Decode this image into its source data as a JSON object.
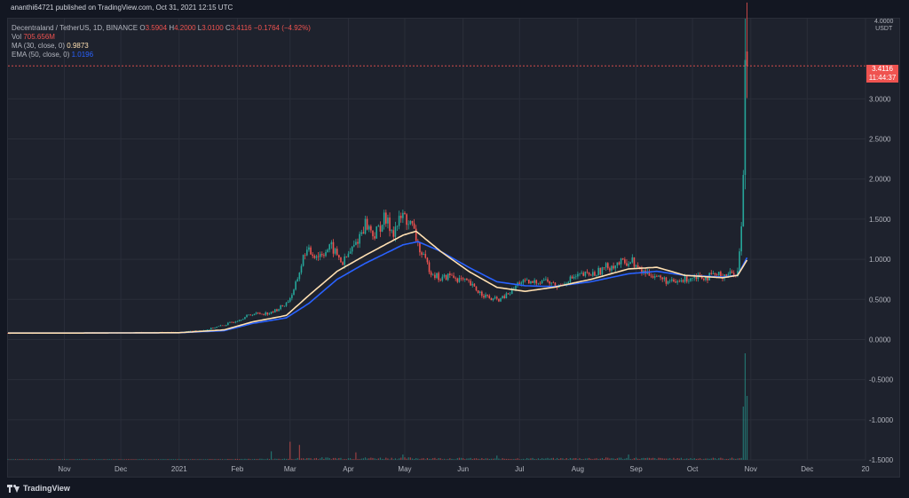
{
  "header": {
    "publish_text": "ananthi64721 published on TradingView.com, Oct 31, 2021 12:15 UTC"
  },
  "legend": {
    "symbol": "Decentraland / TetherUS, 1D, BINANCE",
    "ohlc": {
      "o_label": "O",
      "o_value": "3.5904",
      "h_label": "H",
      "h_value": "4.2000",
      "l_label": "L",
      "l_value": "3.0100",
      "c_label": "C",
      "c_value": "3.4116",
      "change": "−0.1764 (−4.92%)"
    },
    "vol_label": "Vol",
    "vol_value": "705.656M",
    "ma_label": "MA (30, close, 0)",
    "ma_value": "0.9873",
    "ema_label": "EMA (50, close, 0)",
    "ema_value": "1.0196"
  },
  "price_tag": {
    "value": "3.4116",
    "countdown": "11:44:37"
  },
  "axis_unit": {
    "line1": "4.0000",
    "line2": "USDT"
  },
  "footer": {
    "brand": "TradingView"
  },
  "colors": {
    "background": "#1e222d",
    "up": "#26a69a",
    "down": "#ef5350",
    "ma": "#ffe0b2",
    "ema": "#2962ff",
    "grid": "#2a2e39"
  },
  "chart_data": {
    "type": "candlestick",
    "symbol": "MANA/USDT",
    "interval": "1D",
    "ylim": [
      -1.5,
      4.0
    ],
    "y_ticks": [
      "3.0000",
      "2.5000",
      "2.0000",
      "1.5000",
      "1.0000",
      "0.5000",
      "0.0000",
      "-0.5000",
      "-1.0000",
      "-1.5000"
    ],
    "y_tick_values": [
      3.0,
      2.5,
      2.0,
      1.5,
      1.0,
      0.5,
      0.0,
      -0.5,
      -1.0,
      -1.5
    ],
    "x_ticks": [
      "Nov",
      "Dec",
      "2021",
      "Feb",
      "Mar",
      "Apr",
      "May",
      "Jun",
      "Jul",
      "Aug",
      "Sep",
      "Oct",
      "Nov",
      "Dec",
      "20"
    ],
    "x_tick_days": [
      0,
      30,
      61,
      92,
      120,
      151,
      181,
      212,
      242,
      273,
      304,
      334,
      365,
      395,
      426
    ],
    "last_price": 3.4116,
    "price_series_anchors": [
      [
        -30,
        0.08
      ],
      [
        0,
        0.08
      ],
      [
        30,
        0.085
      ],
      [
        61,
        0.09
      ],
      [
        75,
        0.12
      ],
      [
        85,
        0.18
      ],
      [
        92,
        0.24
      ],
      [
        100,
        0.32
      ],
      [
        110,
        0.33
      ],
      [
        118,
        0.45
      ],
      [
        122,
        0.6
      ],
      [
        128,
        1.1
      ],
      [
        135,
        1.05
      ],
      [
        142,
        1.15
      ],
      [
        148,
        0.95
      ],
      [
        155,
        1.2
      ],
      [
        160,
        1.45
      ],
      [
        165,
        1.3
      ],
      [
        170,
        1.5
      ],
      [
        175,
        1.35
      ],
      [
        180,
        1.55
      ],
      [
        185,
        1.4
      ],
      [
        190,
        1.05
      ],
      [
        195,
        0.85
      ],
      [
        200,
        0.75
      ],
      [
        205,
        0.8
      ],
      [
        210,
        0.75
      ],
      [
        215,
        0.7
      ],
      [
        220,
        0.6
      ],
      [
        227,
        0.5
      ],
      [
        232,
        0.5
      ],
      [
        238,
        0.6
      ],
      [
        242,
        0.72
      ],
      [
        248,
        0.7
      ],
      [
        255,
        0.75
      ],
      [
        262,
        0.65
      ],
      [
        268,
        0.75
      ],
      [
        275,
        0.8
      ],
      [
        282,
        0.82
      ],
      [
        288,
        0.9
      ],
      [
        295,
        0.95
      ],
      [
        302,
        0.98
      ],
      [
        306,
        0.85
      ],
      [
        312,
        0.82
      ],
      [
        318,
        0.75
      ],
      [
        324,
        0.7
      ],
      [
        330,
        0.75
      ],
      [
        336,
        0.8
      ],
      [
        342,
        0.78
      ],
      [
        348,
        0.8
      ],
      [
        354,
        0.82
      ],
      [
        358,
        0.84
      ],
      [
        360,
        1.4
      ],
      [
        361,
        2.0
      ],
      [
        362,
        3.6
      ],
      [
        363,
        3.41
      ]
    ],
    "ma_anchors": [
      [
        -30,
        0.08
      ],
      [
        0,
        0.08
      ],
      [
        61,
        0.085
      ],
      [
        85,
        0.12
      ],
      [
        100,
        0.22
      ],
      [
        118,
        0.3
      ],
      [
        130,
        0.55
      ],
      [
        145,
        0.85
      ],
      [
        160,
        1.05
      ],
      [
        180,
        1.3
      ],
      [
        187,
        1.35
      ],
      [
        200,
        1.1
      ],
      [
        215,
        0.85
      ],
      [
        230,
        0.65
      ],
      [
        245,
        0.6
      ],
      [
        260,
        0.65
      ],
      [
        280,
        0.75
      ],
      [
        300,
        0.88
      ],
      [
        315,
        0.9
      ],
      [
        330,
        0.8
      ],
      [
        350,
        0.77
      ],
      [
        358,
        0.8
      ],
      [
        363,
        0.99
      ]
    ],
    "ema_anchors": [
      [
        -30,
        0.08
      ],
      [
        0,
        0.08
      ],
      [
        61,
        0.085
      ],
      [
        85,
        0.11
      ],
      [
        100,
        0.2
      ],
      [
        118,
        0.27
      ],
      [
        130,
        0.45
      ],
      [
        145,
        0.75
      ],
      [
        160,
        0.95
      ],
      [
        180,
        1.18
      ],
      [
        188,
        1.22
      ],
      [
        200,
        1.1
      ],
      [
        215,
        0.9
      ],
      [
        230,
        0.72
      ],
      [
        245,
        0.67
      ],
      [
        260,
        0.66
      ],
      [
        280,
        0.72
      ],
      [
        300,
        0.82
      ],
      [
        315,
        0.85
      ],
      [
        330,
        0.8
      ],
      [
        350,
        0.78
      ],
      [
        358,
        0.8
      ],
      [
        363,
        1.02
      ]
    ],
    "volume_spikes": [
      [
        110,
        0.08
      ],
      [
        120,
        0.17
      ],
      [
        125,
        0.14
      ],
      [
        155,
        0.07
      ],
      [
        180,
        0.05
      ],
      [
        230,
        0.04
      ],
      [
        300,
        0.05
      ],
      [
        361,
        0.5
      ],
      [
        362,
        1.0
      ],
      [
        363,
        0.6
      ]
    ]
  }
}
